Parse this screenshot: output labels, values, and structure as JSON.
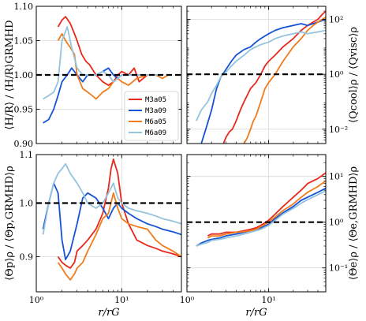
{
  "colors": {
    "M3a05": "#e8281b",
    "M3a09": "#1553d6",
    "M6a05": "#f07b1a",
    "M6a09": "#95c3dc",
    "reference": "#000000",
    "grid": "#d9d9d9"
  },
  "legend": {
    "placement": "lower-right",
    "panel": 0
  },
  "chart_data": [
    {
      "type": "line",
      "ylabel": "$\\langle H/R\\rangle / \\langle H/R\\rangle_{\\rm GRMHD}$",
      "ylabel_text": "⟨H/R⟩ / ⟨H/R⟩GRMHD",
      "xlabel": "",
      "xscale": "log",
      "yscale": "linear",
      "xlim": [
        1,
        50
      ],
      "ylim": [
        0.9,
        1.1
      ],
      "xticks": [
        1,
        10
      ],
      "xtick_labels": [
        "",
        ""
      ],
      "yticks": [
        0.9,
        0.95,
        1.0,
        1.05,
        1.1
      ],
      "ytick_labels": [
        "0.90",
        "0.95",
        "1.00",
        "1.05",
        "1.10"
      ],
      "yaxis_side": "left",
      "reference_line": 1.0,
      "grid": true,
      "series": [
        {
          "name": "M3a05",
          "x": [
            1.8,
            2,
            2.2,
            2.5,
            2.8,
            3,
            3.4,
            3.8,
            4.2,
            5,
            6,
            7,
            8,
            9,
            10,
            12,
            14,
            16,
            20,
            25,
            30
          ],
          "y": [
            1.07,
            1.08,
            1.085,
            1.075,
            1.06,
            1.05,
            1.03,
            1.02,
            1.015,
            1.0,
            0.99,
            0.985,
            0.99,
            1.0,
            1.005,
            1.0,
            1.01,
            0.99,
            1.0,
            1.0,
            1.0
          ]
        },
        {
          "name": "M3a09",
          "x": [
            1.2,
            1.4,
            1.6,
            1.8,
            2,
            2.3,
            2.6,
            3,
            3.5,
            4,
            5,
            6,
            7,
            8,
            9,
            10,
            12,
            15,
            20,
            25,
            30
          ],
          "y": [
            0.93,
            0.935,
            0.95,
            0.97,
            0.99,
            1.0,
            1.01,
            1.0,
            0.99,
            1.0,
            1.0,
            1.005,
            1.01,
            1.0,
            0.995,
            1.0,
            1.0,
            1.0,
            1.0,
            1.0,
            1.0
          ]
        },
        {
          "name": "M6a05",
          "x": [
            1.8,
            2,
            2.2,
            2.5,
            2.8,
            3,
            3.5,
            4,
            4.5,
            5,
            6,
            7,
            8,
            9,
            10,
            12,
            15,
            20,
            25,
            30,
            35
          ],
          "y": [
            1.05,
            1.06,
            1.05,
            1.04,
            1.03,
            1.0,
            0.98,
            0.975,
            0.97,
            0.965,
            0.975,
            0.98,
            0.99,
            0.995,
            0.99,
            0.985,
            0.995,
            1.0,
            1.0,
            0.995,
            1.0
          ]
        },
        {
          "name": "M6a09",
          "x": [
            1.2,
            1.4,
            1.6,
            1.8,
            2,
            2.3,
            2.6,
            3,
            3.5,
            4,
            5,
            6,
            7,
            8,
            9,
            10,
            12,
            15,
            20,
            25,
            30
          ],
          "y": [
            0.965,
            0.97,
            0.975,
            0.99,
            1.05,
            1.07,
            1.04,
            1.01,
            1.0,
            1.0,
            1.0,
            1.005,
            1.0,
            0.99,
            0.995,
            1.0,
            1.0,
            1.0,
            1.0,
            1.0,
            1.0
          ]
        }
      ]
    },
    {
      "type": "line",
      "ylabel": "$\\langle Q_{\\rm cool}\\rangle_\\rho / \\langle Q_{\\rm visc}\\rangle_\\rho$",
      "ylabel_text": "⟨Qcool⟩ρ / ⟨Qvisc⟩ρ",
      "xlabel": "",
      "xscale": "log",
      "yscale": "log",
      "xlim": [
        1,
        50
      ],
      "ylim": [
        0.003,
        300
      ],
      "xticks": [
        1,
        10
      ],
      "xtick_labels": [
        "",
        ""
      ],
      "yticks": [
        0.01,
        1,
        100
      ],
      "ytick_labels": [
        "10⁻²",
        "10⁰",
        "10²"
      ],
      "yaxis_side": "right",
      "reference_line": 1.0,
      "grid": true,
      "series": [
        {
          "name": "M3a05",
          "x": [
            2.8,
            3,
            3.3,
            3.6,
            4,
            4.5,
            5,
            6,
            7,
            8,
            9,
            10,
            12,
            15,
            20,
            25,
            30,
            35,
            40,
            45,
            50
          ],
          "y": [
            0.003,
            0.005,
            0.008,
            0.01,
            0.02,
            0.05,
            0.1,
            0.3,
            0.5,
            1,
            2,
            3,
            5,
            10,
            20,
            40,
            60,
            80,
            100,
            150,
            200
          ]
        },
        {
          "name": "M3a09",
          "x": [
            1.5,
            1.7,
            2,
            2.3,
            2.6,
            3,
            3.5,
            4,
            5,
            6,
            7,
            8,
            10,
            12,
            15,
            20,
            25,
            30,
            40,
            50
          ],
          "y": [
            0.003,
            0.01,
            0.05,
            0.3,
            0.8,
            1.5,
            3,
            5,
            8,
            10,
            15,
            20,
            30,
            40,
            50,
            60,
            70,
            60,
            80,
            100
          ]
        },
        {
          "name": "M6a05",
          "x": [
            5,
            5.5,
            6,
            6.5,
            7,
            8,
            9,
            10,
            12,
            15,
            20,
            25,
            30,
            35,
            40,
            45,
            50
          ],
          "y": [
            0.003,
            0.005,
            0.01,
            0.02,
            0.03,
            0.1,
            0.3,
            0.5,
            1,
            3,
            10,
            20,
            40,
            60,
            80,
            100,
            120
          ]
        },
        {
          "name": "M6a09",
          "x": [
            1.3,
            1.5,
            1.8,
            2,
            2.3,
            2.6,
            3,
            3.5,
            4,
            5,
            6,
            7,
            8,
            10,
            12,
            15,
            20,
            25,
            30,
            40,
            50
          ],
          "y": [
            0.02,
            0.05,
            0.1,
            0.2,
            0.4,
            0.8,
            1.2,
            2,
            3,
            5,
            8,
            10,
            12,
            15,
            20,
            25,
            30,
            35,
            30,
            35,
            40
          ]
        }
      ]
    },
    {
      "type": "line",
      "ylabel": "$\\langle\\Theta_p\\rangle_\\rho / \\langle\\Theta_{p,\\rm GRMHD}\\rangle_\\rho$",
      "ylabel_text": "⟨Θp⟩ρ / ⟨Θp,GRMHD⟩ρ",
      "xlabel": "$r/r_{\\rm G}$",
      "xlabel_text": "r/rG",
      "xscale": "log",
      "yscale": "log",
      "xlim": [
        1,
        50
      ],
      "ylim": [
        0.84,
        1.1
      ],
      "xticks": [
        1,
        10
      ],
      "xtick_labels": [
        "10⁰",
        "10¹"
      ],
      "yticks": [
        0.9,
        1.0,
        1.1
      ],
      "ytick_labels": [
        "0.9",
        "1.0",
        "1.1"
      ],
      "yaxis_side": "left",
      "reference_line": 1.0,
      "grid": true,
      "series": [
        {
          "name": "M3a05",
          "x": [
            1.8,
            2,
            2.2,
            2.5,
            2.8,
            3,
            3.5,
            4,
            5,
            6,
            7,
            7.5,
            8,
            9,
            10,
            12,
            15,
            20,
            25,
            30,
            40,
            50
          ],
          "y": [
            0.9,
            0.89,
            0.885,
            0.88,
            0.89,
            0.91,
            0.92,
            0.93,
            0.95,
            0.98,
            1.03,
            1.07,
            1.09,
            1.06,
            1.0,
            0.96,
            0.93,
            0.92,
            0.915,
            0.91,
            0.905,
            0.9
          ]
        },
        {
          "name": "M3a09",
          "x": [
            1.2,
            1.4,
            1.6,
            1.8,
            2,
            2.2,
            2.5,
            3,
            3.5,
            4,
            5,
            6,
            7,
            8,
            9,
            10,
            12,
            15,
            20,
            25,
            30,
            40,
            50
          ],
          "y": [
            0.95,
            1.0,
            1.04,
            1.02,
            0.93,
            0.895,
            0.91,
            0.96,
            1.01,
            1.02,
            1.01,
            0.99,
            0.97,
            0.99,
            1.0,
            0.99,
            0.98,
            0.97,
            0.96,
            0.955,
            0.95,
            0.945,
            0.94
          ]
        },
        {
          "name": "M6a05",
          "x": [
            1.8,
            2,
            2.2,
            2.5,
            2.8,
            3,
            3.5,
            4,
            5,
            6,
            7,
            8,
            9,
            10,
            12,
            15,
            20,
            25,
            30,
            40,
            50
          ],
          "y": [
            0.89,
            0.88,
            0.87,
            0.86,
            0.87,
            0.88,
            0.89,
            0.91,
            0.94,
            0.97,
            0.98,
            1.02,
            0.99,
            0.97,
            0.96,
            0.955,
            0.95,
            0.93,
            0.92,
            0.91,
            0.9
          ]
        },
        {
          "name": "M6a09",
          "x": [
            1.2,
            1.4,
            1.6,
            1.8,
            2,
            2.2,
            2.5,
            3,
            3.5,
            4,
            5,
            6,
            7,
            8,
            9,
            10,
            12,
            15,
            20,
            25,
            30,
            40,
            50
          ],
          "y": [
            0.94,
            1.0,
            1.04,
            1.06,
            1.07,
            1.08,
            1.06,
            1.04,
            1.02,
            1.0,
            0.99,
            1.0,
            1.02,
            1.04,
            1.01,
            1.0,
            0.99,
            0.985,
            0.98,
            0.975,
            0.97,
            0.965,
            0.96
          ]
        }
      ]
    },
    {
      "type": "line",
      "ylabel": "$\\langle\\Theta_e\\rangle_\\rho / \\langle\\Theta_{e,\\rm GRMHD}\\rangle_\\rho$",
      "ylabel_text": "⟨Θe⟩ρ / ⟨Θe,GRMHD⟩ρ",
      "xlabel": "$r/r_{\\rm G}$",
      "xlabel_text": "r/rG",
      "xscale": "log",
      "yscale": "log",
      "xlim": [
        1,
        50
      ],
      "ylim": [
        0.03,
        30
      ],
      "xticks": [
        1,
        10
      ],
      "xtick_labels": [
        "10⁰",
        "10¹"
      ],
      "yticks": [
        0.1,
        1,
        10
      ],
      "ytick_labels": [
        "10⁻¹",
        "10⁰",
        "10¹"
      ],
      "yaxis_side": "right",
      "reference_line": 1.0,
      "grid": true,
      "series": [
        {
          "name": "M3a05",
          "x": [
            1.8,
            2,
            2.5,
            3,
            4,
            5,
            6,
            7,
            8,
            10,
            12,
            15,
            20,
            25,
            30,
            40,
            50
          ],
          "y": [
            0.5,
            0.55,
            0.55,
            0.6,
            0.6,
            0.65,
            0.7,
            0.75,
            0.85,
            1.1,
            1.5,
            2.2,
            3.5,
            5,
            7,
            9,
            12
          ]
        },
        {
          "name": "M3a09",
          "x": [
            1.3,
            1.5,
            1.8,
            2,
            2.5,
            3,
            4,
            5,
            6,
            7,
            8,
            10,
            12,
            15,
            20,
            25,
            30,
            40,
            50
          ],
          "y": [
            0.3,
            0.35,
            0.4,
            0.42,
            0.45,
            0.5,
            0.55,
            0.6,
            0.65,
            0.7,
            0.75,
            0.9,
            1.2,
            1.6,
            2.2,
            3,
            3.5,
            4.5,
            5.5
          ]
        },
        {
          "name": "M6a05",
          "x": [
            1.8,
            2,
            2.5,
            3,
            4,
            5,
            6,
            7,
            8,
            10,
            12,
            15,
            20,
            25,
            30,
            40,
            50
          ],
          "y": [
            0.45,
            0.5,
            0.5,
            0.55,
            0.6,
            0.62,
            0.65,
            0.7,
            0.8,
            1.0,
            1.3,
            1.8,
            2.5,
            3.5,
            4.5,
            6,
            8
          ]
        },
        {
          "name": "M6a09",
          "x": [
            1.3,
            1.5,
            1.8,
            2,
            2.5,
            3,
            4,
            5,
            6,
            7,
            8,
            10,
            12,
            15,
            20,
            25,
            30,
            40,
            50
          ],
          "y": [
            0.3,
            0.33,
            0.36,
            0.4,
            0.42,
            0.45,
            0.5,
            0.55,
            0.6,
            0.65,
            0.7,
            0.85,
            1.1,
            1.5,
            2.0,
            2.6,
            3.1,
            4,
            4.8
          ]
        }
      ]
    }
  ]
}
